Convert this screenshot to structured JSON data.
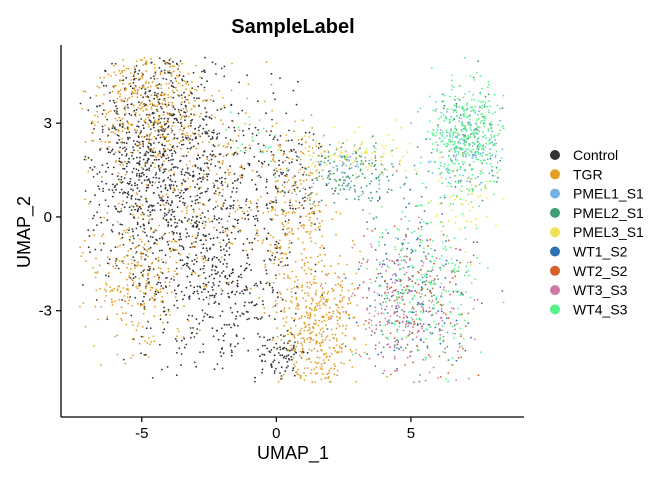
{
  "chart_data": {
    "type": "scatter",
    "title": "SampleLabel",
    "xlabel": "UMAP_1",
    "ylabel": "UMAP_2",
    "xlim": [
      -8.0,
      9.2
    ],
    "ylim": [
      -6.4,
      5.5
    ],
    "x_ticks": [
      -5,
      0,
      5
    ],
    "x_tick_labels": [
      "-5",
      "0",
      "5"
    ],
    "y_ticks": [
      -3,
      0,
      3
    ],
    "y_tick_labels": [
      "-3",
      "0",
      "3"
    ],
    "grid": false,
    "legend_position": "right",
    "series": [
      {
        "name": "Control",
        "color": "#333333",
        "clusters": [
          {
            "cx": -4.2,
            "cy": 2.8,
            "sx": 1.5,
            "sy": 1.6,
            "n": 700
          },
          {
            "cx": -2.2,
            "cy": -1.5,
            "sx": 1.4,
            "sy": 1.8,
            "n": 650
          },
          {
            "cx": -5.0,
            "cy": 0.5,
            "sx": 1.2,
            "sy": 1.5,
            "n": 350
          },
          {
            "cx": 0.3,
            "cy": 1.5,
            "sx": 0.8,
            "sy": 1.2,
            "n": 120
          },
          {
            "cx": 0.2,
            "cy": -4.5,
            "sx": 0.5,
            "sy": 0.4,
            "n": 80
          }
        ]
      },
      {
        "name": "TGR",
        "color": "#E39F24",
        "clusters": [
          {
            "cx": -4.8,
            "cy": 3.6,
            "sx": 1.2,
            "sy": 1.0,
            "n": 450
          },
          {
            "cx": -5.2,
            "cy": -1.8,
            "sx": 1.0,
            "sy": 1.2,
            "n": 300
          },
          {
            "cx": 1.5,
            "cy": -3.5,
            "sx": 0.7,
            "sy": 1.2,
            "n": 450
          },
          {
            "cx": 0.8,
            "cy": 0.3,
            "sx": 0.6,
            "sy": 1.2,
            "n": 200
          },
          {
            "cx": -2.0,
            "cy": 1.0,
            "sx": 1.5,
            "sy": 1.5,
            "n": 200
          }
        ]
      },
      {
        "name": "PMEL1_S1",
        "color": "#72B4E3",
        "clusters": [
          {
            "cx": 7.0,
            "cy": 2.4,
            "sx": 0.7,
            "sy": 0.7,
            "n": 120
          },
          {
            "cx": 2.5,
            "cy": 1.5,
            "sx": 1.0,
            "sy": 0.4,
            "n": 60
          }
        ]
      },
      {
        "name": "PMEL2_S1",
        "color": "#3E9E72",
        "clusters": [
          {
            "cx": 3.0,
            "cy": 1.4,
            "sx": 1.0,
            "sy": 0.5,
            "n": 150
          },
          {
            "cx": 7.2,
            "cy": 2.6,
            "sx": 0.7,
            "sy": 0.8,
            "n": 80
          },
          {
            "cx": 5.0,
            "cy": -2.5,
            "sx": 1.0,
            "sy": 1.2,
            "n": 80
          }
        ]
      },
      {
        "name": "PMEL3_S1",
        "color": "#F0E251",
        "clusters": [
          {
            "cx": 3.0,
            "cy": 2.0,
            "sx": 1.3,
            "sy": 0.4,
            "n": 110
          },
          {
            "cx": 7.0,
            "cy": 0.5,
            "sx": 0.6,
            "sy": 0.6,
            "n": 60
          }
        ]
      },
      {
        "name": "WT1_S2",
        "color": "#2E72B5",
        "clusters": [
          {
            "cx": 5.0,
            "cy": -2.5,
            "sx": 1.1,
            "sy": 1.3,
            "n": 140
          }
        ]
      },
      {
        "name": "WT2_S2",
        "color": "#D4602B",
        "clusters": [
          {
            "cx": 5.2,
            "cy": -2.6,
            "sx": 1.1,
            "sy": 1.3,
            "n": 130
          }
        ]
      },
      {
        "name": "WT3_S3",
        "color": "#CC79A7",
        "clusters": [
          {
            "cx": 4.8,
            "cy": -3.0,
            "sx": 1.1,
            "sy": 1.2,
            "n": 200
          }
        ]
      },
      {
        "name": "WT4_S3",
        "color": "#55F28C",
        "clusters": [
          {
            "cx": 7.1,
            "cy": 2.5,
            "sx": 0.7,
            "sy": 0.9,
            "n": 380
          },
          {
            "cx": 5.5,
            "cy": -2.2,
            "sx": 1.0,
            "sy": 1.3,
            "n": 220
          },
          {
            "cx": -0.8,
            "cy": 2.5,
            "sx": 0.6,
            "sy": 0.5,
            "n": 25
          }
        ]
      }
    ]
  }
}
